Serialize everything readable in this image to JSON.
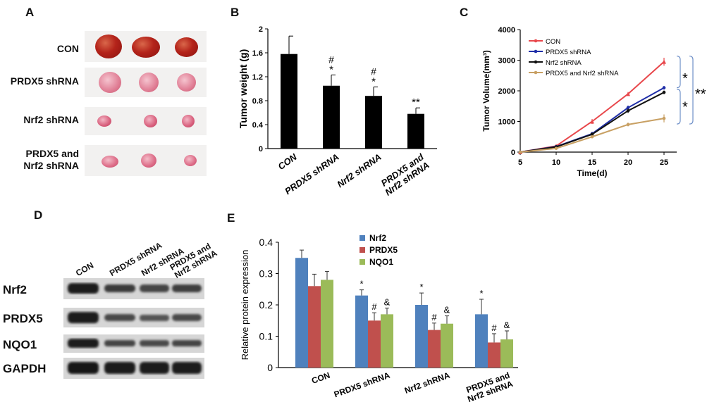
{
  "panels": {
    "a": "A",
    "b": "B",
    "c": "C",
    "d": "D",
    "e": "E"
  },
  "panel_a": {
    "groups": [
      "CON",
      "PRDX5 shRNA",
      "Nrf2 shRNA",
      "PRDX5 and\nNrf2 shRNA"
    ]
  },
  "chart_data": [
    {
      "type": "bar",
      "title": "",
      "ylabel": "Tumor weight (g)",
      "xlabel": "",
      "ylim": [
        0,
        2
      ],
      "yticks": [
        "0",
        "0.4",
        "0.8",
        "1.2",
        "1.6",
        "2"
      ],
      "categories": [
        "CON",
        "PRDX5 shRNA",
        "Nrf2 shRNA",
        "PRDX5 and\nNrf2 shRNA"
      ],
      "values": [
        1.58,
        1.05,
        0.88,
        0.58
      ],
      "errors": [
        0.3,
        0.18,
        0.15,
        0.1
      ],
      "annotations": [
        [
          "",
          ""
        ],
        [
          "#",
          "*"
        ],
        [
          "#",
          "*"
        ],
        [
          "",
          "**"
        ]
      ],
      "color": "#000000"
    },
    {
      "type": "line",
      "title": "",
      "xlabel": "Time(d)",
      "ylabel": "Tumor Volume(mm³)",
      "x": [
        5,
        10,
        15,
        20,
        25
      ],
      "xticks": [
        "5",
        "10",
        "15",
        "20",
        "25"
      ],
      "ylim": [
        0,
        4000
      ],
      "yticks": [
        "0",
        "1000",
        "2000",
        "3000",
        "4000"
      ],
      "series": [
        {
          "name": "CON",
          "values": [
            0,
            200,
            1000,
            1900,
            2950
          ],
          "errors": [
            20,
            30,
            80,
            60,
            130
          ],
          "color": "#e8474b",
          "marker": "triangle"
        },
        {
          "name": "PRDX5 shRNA",
          "values": [
            0,
            180,
            600,
            1450,
            2100
          ],
          "errors": [
            20,
            25,
            60,
            70,
            60
          ],
          "color": "#1f2ea8",
          "marker": "circle"
        },
        {
          "name": "Nrf2 shRNA",
          "values": [
            0,
            170,
            580,
            1350,
            1950
          ],
          "errors": [
            20,
            25,
            55,
            70,
            60
          ],
          "color": "#111111",
          "marker": "circle"
        },
        {
          "name": "PRDX5 and Nrf2 shRNA",
          "values": [
            0,
            120,
            500,
            900,
            1100
          ],
          "errors": [
            15,
            20,
            40,
            60,
            130
          ],
          "color": "#c8a063",
          "marker": "circle"
        }
      ],
      "annotations": [
        "*",
        "*",
        "**"
      ]
    },
    {
      "type": "bar",
      "title": "",
      "ylabel": "Relative protein expression",
      "xlabel": "",
      "ylim": [
        0,
        0.4
      ],
      "yticks": [
        "0",
        "0.1",
        "0.2",
        "0.3",
        "0.4"
      ],
      "categories": [
        "CON",
        "PRDX5 shRNA",
        "Nrf2 shRNA",
        "PRDX5 and\nNrf2 shRNA"
      ],
      "series": [
        {
          "name": "Nrf2",
          "values": [
            0.35,
            0.23,
            0.2,
            0.17
          ],
          "errors": [
            0.025,
            0.018,
            0.038,
            0.048
          ],
          "color": "#4f81bd",
          "annotations": [
            "",
            "*",
            "*",
            "*"
          ]
        },
        {
          "name": "PRDX5",
          "values": [
            0.26,
            0.15,
            0.12,
            0.08
          ],
          "errors": [
            0.038,
            0.025,
            0.022,
            0.028
          ],
          "color": "#c0504d",
          "annotations": [
            "",
            "#",
            "#",
            "#"
          ]
        },
        {
          "name": "NQO1",
          "values": [
            0.28,
            0.17,
            0.14,
            0.09
          ],
          "errors": [
            0.027,
            0.02,
            0.025,
            0.027
          ],
          "color": "#9bbb59",
          "annotations": [
            "",
            "&",
            "&",
            "&"
          ]
        }
      ]
    }
  ],
  "panel_d": {
    "lanes": [
      "CON",
      "PRDX5 shRNA",
      "Nrf2 shRNA",
      "PRDX5 and\nNrf2 shRNA"
    ],
    "proteins": [
      "Nrf2",
      "PRDX5",
      "NQO1",
      "GAPDH"
    ]
  }
}
